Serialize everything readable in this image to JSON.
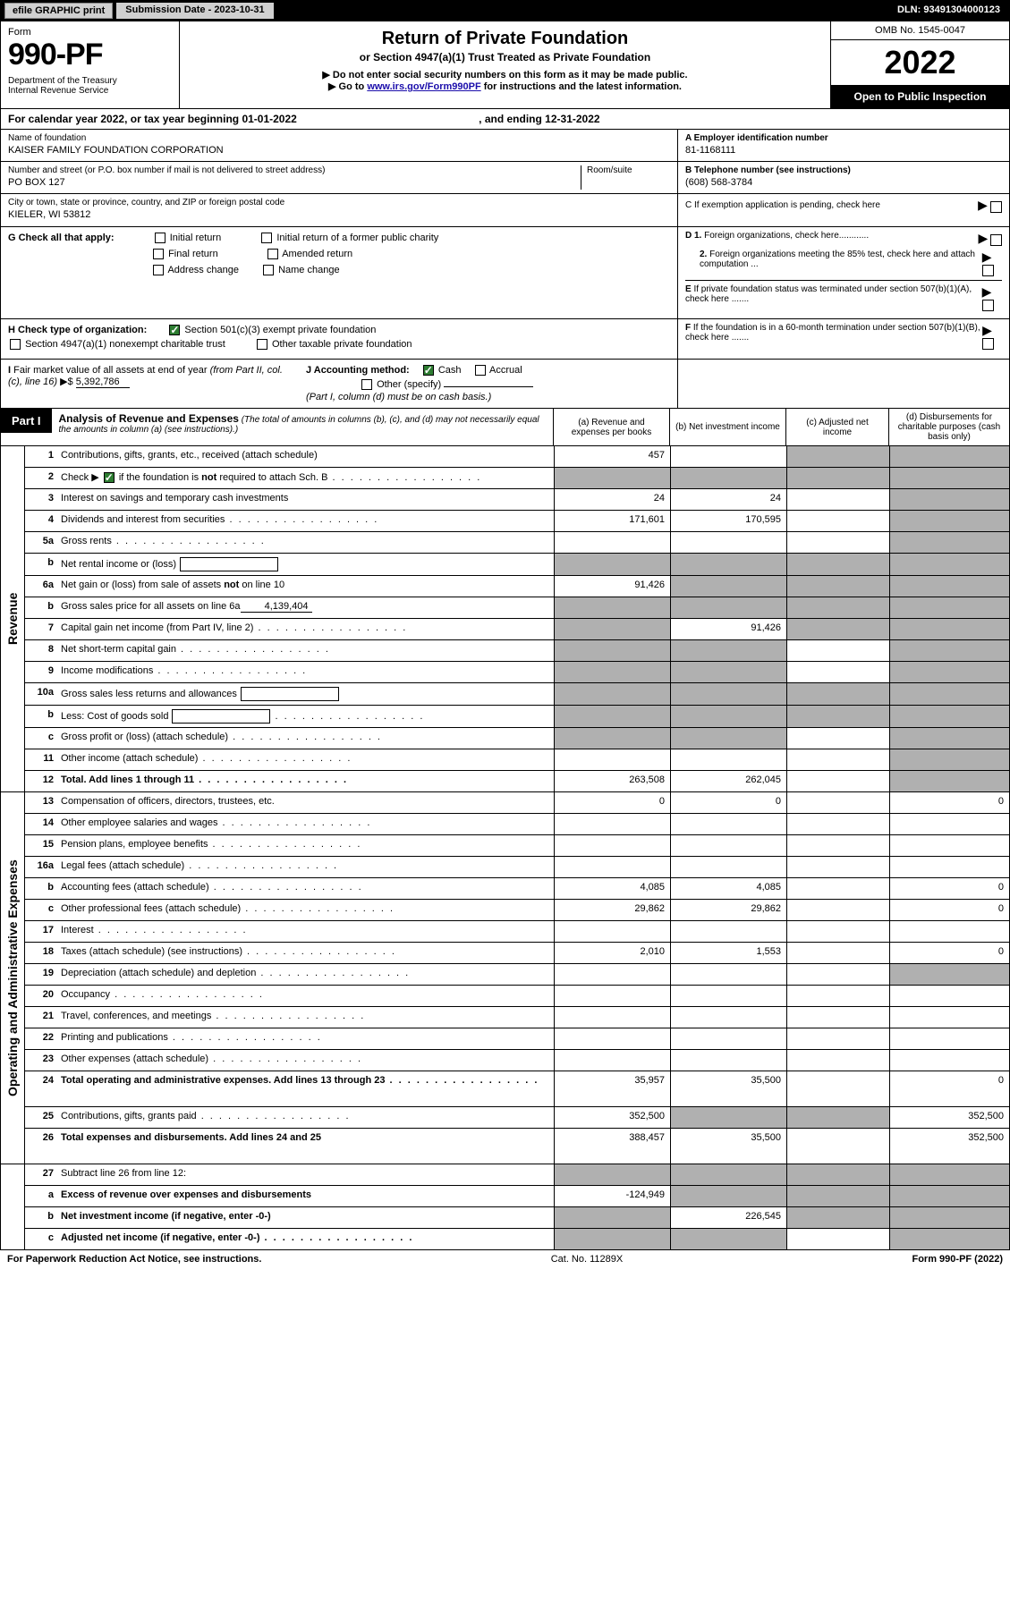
{
  "topbar": {
    "efile": "efile GRAPHIC print",
    "submission_label": "Submission Date - 2023-10-31",
    "dln": "DLN: 93491304000123"
  },
  "header": {
    "form_word": "Form",
    "form_number": "990-PF",
    "dept": "Department of the Treasury\nInternal Revenue Service",
    "title": "Return of Private Foundation",
    "subtitle": "or Section 4947(a)(1) Trust Treated as Private Foundation",
    "note1": "▶ Do not enter social security numbers on this form as it may be made public.",
    "note2_prefix": "▶ Go to ",
    "note2_link": "www.irs.gov/Form990PF",
    "note2_suffix": " for instructions and the latest information.",
    "omb": "OMB No. 1545-0047",
    "year": "2022",
    "open": "Open to Public Inspection"
  },
  "cal_year": "For calendar year 2022, or tax year beginning 01-01-2022",
  "cal_year_end": ", and ending 12-31-2022",
  "name_block": {
    "name_lbl": "Name of foundation",
    "name_val": "KAISER FAMILY FOUNDATION CORPORATION",
    "addr_lbl": "Number and street (or P.O. box number if mail is not delivered to street address)",
    "room_lbl": "Room/suite",
    "addr_val": "PO BOX 127",
    "city_lbl": "City or town, state or province, country, and ZIP or foreign postal code",
    "city_val": "KIELER, WI  53812"
  },
  "ein_block": {
    "a_lbl": "A Employer identification number",
    "a_val": "81-1168111",
    "b_lbl": "B Telephone number (see instructions)",
    "b_val": "(608) 568-3784",
    "c_lbl": "C If exemption application is pending, check here"
  },
  "g_section": {
    "label": "G Check all that apply:",
    "opts": [
      "Initial return",
      "Initial return of a former public charity",
      "Final return",
      "Amended return",
      "Address change",
      "Name change"
    ]
  },
  "d_section": {
    "d1": "D 1. Foreign organizations, check here............",
    "d2": "2. Foreign organizations meeting the 85% test, check here and attach computation ...",
    "e": "E If private foundation status was terminated under section 507(b)(1)(A), check here .......",
    "f": "F If the foundation is in a 60-month termination under section 507(b)(1)(B), check here ......."
  },
  "h_section": {
    "h_label": "H Check type of organization:",
    "h_opt1": "Section 501(c)(3) exempt private foundation",
    "h_opt2": "Section 4947(a)(1) nonexempt charitable trust",
    "h_opt3": "Other taxable private foundation"
  },
  "i_section": {
    "label": "I Fair market value of all assets at end of year (from Part II, col. (c), line 16) ▶$",
    "val": "5,392,786"
  },
  "j_section": {
    "label": "J Accounting method:",
    "cash": "Cash",
    "accrual": "Accrual",
    "other": "Other (specify)",
    "note": "(Part I, column (d) must be on cash basis.)"
  },
  "part1": {
    "label": "Part I",
    "title": "Analysis of Revenue and Expenses",
    "title_note": " (The total of amounts in columns (b), (c), and (d) may not necessarily equal the amounts in column (a) (see instructions).)",
    "col_a": "(a)   Revenue and expenses per books",
    "col_b": "(b)   Net investment income",
    "col_c": "(c)   Adjusted net income",
    "col_d": "(d)   Disbursements for charitable purposes (cash basis only)"
  },
  "side_labels": {
    "revenue": "Revenue",
    "expenses": "Operating and Administrative Expenses"
  },
  "rows": [
    {
      "num": "1",
      "desc": "Contributions, gifts, grants, etc., received (attach schedule)",
      "a": "457",
      "b": "",
      "c": "shaded",
      "d": "shaded"
    },
    {
      "num": "2",
      "desc": "Check ▶ ☑ if the foundation is not required to attach Sch. B",
      "a": "shaded",
      "b": "shaded",
      "c": "shaded",
      "d": "shaded",
      "dots": true
    },
    {
      "num": "3",
      "desc": "Interest on savings and temporary cash investments",
      "a": "24",
      "b": "24",
      "c": "",
      "d": "shaded"
    },
    {
      "num": "4",
      "desc": "Dividends and interest from securities",
      "a": "171,601",
      "b": "170,595",
      "c": "",
      "d": "shaded",
      "dots": true
    },
    {
      "num": "5a",
      "desc": "Gross rents",
      "a": "",
      "b": "",
      "c": "",
      "d": "shaded",
      "dots": true
    },
    {
      "num": "b",
      "desc": "Net rental income or (loss)",
      "a": "shaded",
      "b": "shaded",
      "c": "shaded",
      "d": "shaded",
      "box": true
    },
    {
      "num": "6a",
      "desc": "Net gain or (loss) from sale of assets not on line 10",
      "a": "91,426",
      "b": "shaded",
      "c": "shaded",
      "d": "shaded"
    },
    {
      "num": "b",
      "desc": "Gross sales price for all assets on line 6a",
      "a": "shaded",
      "b": "shaded",
      "c": "shaded",
      "d": "shaded",
      "underline": "4,139,404"
    },
    {
      "num": "7",
      "desc": "Capital gain net income (from Part IV, line 2)",
      "a": "shaded",
      "b": "91,426",
      "c": "shaded",
      "d": "shaded",
      "dots": true
    },
    {
      "num": "8",
      "desc": "Net short-term capital gain",
      "a": "shaded",
      "b": "shaded",
      "c": "",
      "d": "shaded",
      "dots": true
    },
    {
      "num": "9",
      "desc": "Income modifications",
      "a": "shaded",
      "b": "shaded",
      "c": "",
      "d": "shaded",
      "dots": true
    },
    {
      "num": "10a",
      "desc": "Gross sales less returns and allowances",
      "a": "shaded",
      "b": "shaded",
      "c": "shaded",
      "d": "shaded",
      "box": true
    },
    {
      "num": "b",
      "desc": "Less: Cost of goods sold",
      "a": "shaded",
      "b": "shaded",
      "c": "shaded",
      "d": "shaded",
      "box": true,
      "dots": true
    },
    {
      "num": "c",
      "desc": "Gross profit or (loss) (attach schedule)",
      "a": "shaded",
      "b": "shaded",
      "c": "",
      "d": "shaded",
      "dots": true
    },
    {
      "num": "11",
      "desc": "Other income (attach schedule)",
      "a": "",
      "b": "",
      "c": "",
      "d": "shaded",
      "dots": true
    },
    {
      "num": "12",
      "desc": "Total. Add lines 1 through 11",
      "a": "263,508",
      "b": "262,045",
      "c": "",
      "d": "shaded",
      "bold": true,
      "dots": true
    }
  ],
  "exp_rows": [
    {
      "num": "13",
      "desc": "Compensation of officers, directors, trustees, etc.",
      "a": "0",
      "b": "0",
      "c": "",
      "d": "0"
    },
    {
      "num": "14",
      "desc": "Other employee salaries and wages",
      "a": "",
      "b": "",
      "c": "",
      "d": "",
      "dots": true
    },
    {
      "num": "15",
      "desc": "Pension plans, employee benefits",
      "a": "",
      "b": "",
      "c": "",
      "d": "",
      "dots": true
    },
    {
      "num": "16a",
      "desc": "Legal fees (attach schedule)",
      "a": "",
      "b": "",
      "c": "",
      "d": "",
      "dots": true
    },
    {
      "num": "b",
      "desc": "Accounting fees (attach schedule)",
      "a": "4,085",
      "b": "4,085",
      "c": "",
      "d": "0",
      "dots": true
    },
    {
      "num": "c",
      "desc": "Other professional fees (attach schedule)",
      "a": "29,862",
      "b": "29,862",
      "c": "",
      "d": "0",
      "dots": true
    },
    {
      "num": "17",
      "desc": "Interest",
      "a": "",
      "b": "",
      "c": "",
      "d": "",
      "dots": true
    },
    {
      "num": "18",
      "desc": "Taxes (attach schedule) (see instructions)",
      "a": "2,010",
      "b": "1,553",
      "c": "",
      "d": "0",
      "dots": true
    },
    {
      "num": "19",
      "desc": "Depreciation (attach schedule) and depletion",
      "a": "",
      "b": "",
      "c": "",
      "d": "shaded",
      "dots": true
    },
    {
      "num": "20",
      "desc": "Occupancy",
      "a": "",
      "b": "",
      "c": "",
      "d": "",
      "dots": true
    },
    {
      "num": "21",
      "desc": "Travel, conferences, and meetings",
      "a": "",
      "b": "",
      "c": "",
      "d": "",
      "dots": true
    },
    {
      "num": "22",
      "desc": "Printing and publications",
      "a": "",
      "b": "",
      "c": "",
      "d": "",
      "dots": true
    },
    {
      "num": "23",
      "desc": "Other expenses (attach schedule)",
      "a": "",
      "b": "",
      "c": "",
      "d": "",
      "dots": true
    },
    {
      "num": "24",
      "desc": "Total operating and administrative expenses. Add lines 13 through 23",
      "a": "35,957",
      "b": "35,500",
      "c": "",
      "d": "0",
      "bold": true,
      "dots": true,
      "tall": true
    },
    {
      "num": "25",
      "desc": "Contributions, gifts, grants paid",
      "a": "352,500",
      "b": "shaded",
      "c": "shaded",
      "d": "352,500",
      "dots": true
    },
    {
      "num": "26",
      "desc": "Total expenses and disbursements. Add lines 24 and 25",
      "a": "388,457",
      "b": "35,500",
      "c": "",
      "d": "352,500",
      "bold": true,
      "tall": true
    }
  ],
  "bottom_rows": [
    {
      "num": "27",
      "desc": "Subtract line 26 from line 12:",
      "a": "shaded",
      "b": "shaded",
      "c": "shaded",
      "d": "shaded"
    },
    {
      "num": "a",
      "desc": "Excess of revenue over expenses and disbursements",
      "a": "-124,949",
      "b": "shaded",
      "c": "shaded",
      "d": "shaded",
      "bold": true
    },
    {
      "num": "b",
      "desc": "Net investment income (if negative, enter -0-)",
      "a": "shaded",
      "b": "226,545",
      "c": "shaded",
      "d": "shaded",
      "bold": true
    },
    {
      "num": "c",
      "desc": "Adjusted net income (if negative, enter -0-)",
      "a": "shaded",
      "b": "shaded",
      "c": "",
      "d": "shaded",
      "bold": true,
      "dots": true
    }
  ],
  "footer": {
    "left": "For Paperwork Reduction Act Notice, see instructions.",
    "center": "Cat. No. 11289X",
    "right": "Form 990-PF (2022)"
  }
}
